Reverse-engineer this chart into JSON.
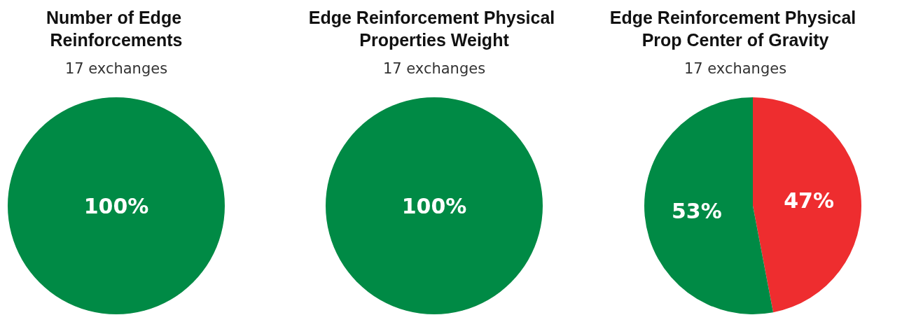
{
  "chart_data": [
    {
      "type": "pie",
      "title": "Number of Edge Reinforcements",
      "subtitle": "17 exchanges",
      "categories": [
        null
      ],
      "values": [
        100
      ],
      "colors": [
        "#008a45"
      ],
      "value_labels": [
        "100%"
      ]
    },
    {
      "type": "pie",
      "title": "Edge Reinforcement Physical Properties Weight",
      "subtitle": "17 exchanges",
      "categories": [
        null
      ],
      "values": [
        100
      ],
      "colors": [
        "#008a45"
      ],
      "value_labels": [
        "100%"
      ]
    },
    {
      "type": "pie",
      "title": "Edge Reinforcement Physical Prop Center of Gravity",
      "subtitle": "17 exchanges",
      "categories": [
        null,
        null
      ],
      "values": [
        47,
        53
      ],
      "colors": [
        "#ee2d2f",
        "#008a45"
      ],
      "value_labels": [
        "47%",
        "53%"
      ]
    }
  ]
}
